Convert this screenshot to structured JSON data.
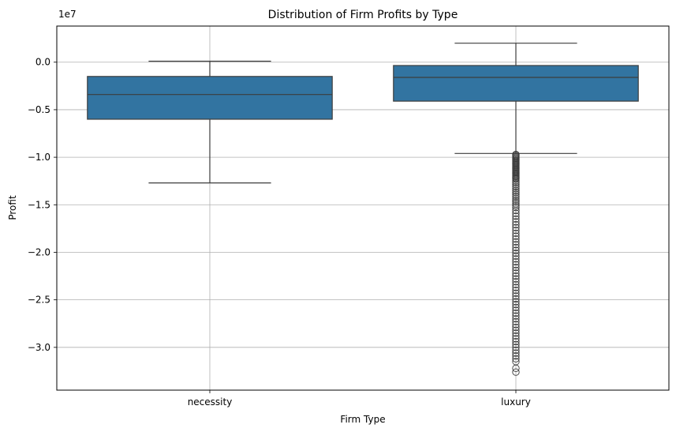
{
  "chart_data": {
    "type": "box",
    "title": "Distribution of Firm Profits by Type",
    "xlabel": "Firm Type",
    "ylabel": "Profit",
    "y_offset_label": "1e7",
    "y_scale_factor": 10000000,
    "ylim": [
      -34500000,
      3800000
    ],
    "grid": true,
    "box_color": "#3274a1",
    "line_color": "#3d3d3d",
    "y_ticks": [
      0,
      -5000000,
      -10000000,
      -15000000,
      -20000000,
      -25000000,
      -30000000
    ],
    "y_tick_labels": [
      "0.0",
      "−0.5",
      "−1.0",
      "−1.5",
      "−2.0",
      "−2.5",
      "−3.0"
    ],
    "categories": [
      "necessity",
      "luxury"
    ],
    "boxes": [
      {
        "category": "necessity",
        "whisker_high": 100000,
        "q3": -1500000,
        "median": -3400000,
        "q1": -6000000,
        "whisker_low": -12700000,
        "outliers": []
      },
      {
        "category": "luxury",
        "whisker_high": 2000000,
        "q3": -350000,
        "median": -1600000,
        "q1": -4100000,
        "whisker_low": -9600000,
        "outliers": [
          -9700000,
          -9800000,
          -9900000,
          -10000000,
          -10100000,
          -10200000,
          -10300000,
          -10400000,
          -10500000,
          -10600000,
          -10700000,
          -10800000,
          -10900000,
          -11000000,
          -11100000,
          -11200000,
          -11300000,
          -11400000,
          -11500000,
          -11600000,
          -11700000,
          -11800000,
          -11900000,
          -12000000,
          -12100000,
          -12200000,
          -12300000,
          -12500000,
          -12700000,
          -12900000,
          -13100000,
          -13300000,
          -13500000,
          -13700000,
          -13900000,
          -14100000,
          -14300000,
          -14500000,
          -14700000,
          -14900000,
          -15100000,
          -15300000,
          -15600000,
          -15900000,
          -16200000,
          -16500000,
          -16800000,
          -17100000,
          -17400000,
          -17700000,
          -18000000,
          -18300000,
          -18600000,
          -18900000,
          -19200000,
          -19500000,
          -19800000,
          -20100000,
          -20400000,
          -20700000,
          -21000000,
          -21300000,
          -21600000,
          -21900000,
          -22200000,
          -22500000,
          -22800000,
          -23100000,
          -23400000,
          -23700000,
          -24000000,
          -24300000,
          -24600000,
          -24900000,
          -25200000,
          -25500000,
          -25800000,
          -26100000,
          -26400000,
          -26700000,
          -27000000,
          -27300000,
          -27600000,
          -27900000,
          -28200000,
          -28500000,
          -28800000,
          -29100000,
          -29400000,
          -29700000,
          -30000000,
          -30300000,
          -30600000,
          -30900000,
          -31200000,
          -31500000,
          -32200000,
          -32600000
        ]
      }
    ]
  }
}
